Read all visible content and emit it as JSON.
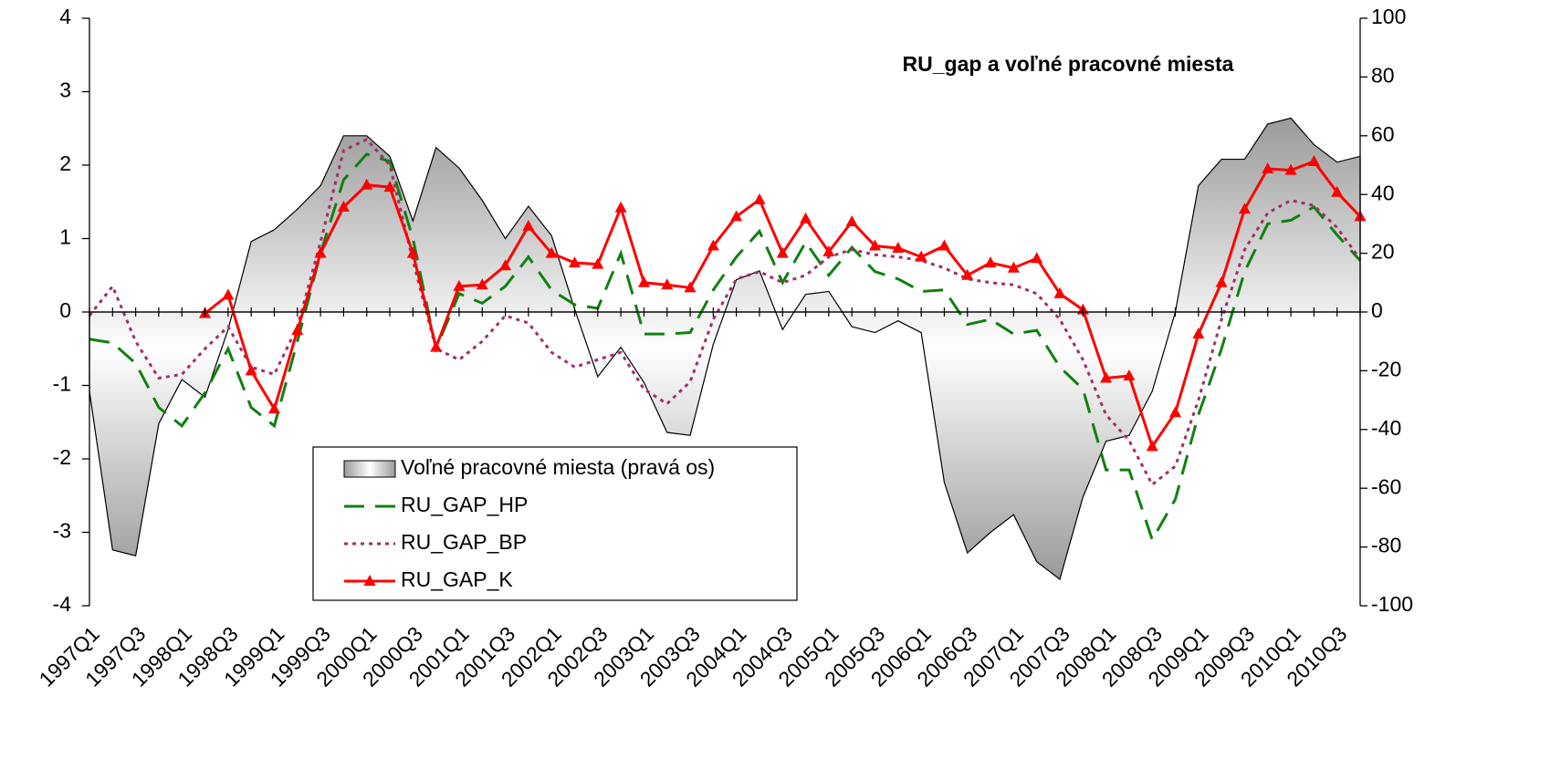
{
  "chart_data": {
    "type": "line",
    "title": "RU_gap a voľné pracovné miesta",
    "categories": [
      "1997Q1",
      null,
      "1997Q3",
      null,
      "1998Q1",
      null,
      "1998Q3",
      null,
      "1999Q1",
      null,
      "1999Q3",
      null,
      "2000Q1",
      null,
      "2000Q3",
      null,
      "2001Q1",
      null,
      "2001Q3",
      null,
      "2002Q1",
      null,
      "2002Q3",
      null,
      "2003Q1",
      null,
      "2003Q3",
      null,
      "2004Q1",
      null,
      "2004Q3",
      null,
      "2005Q1",
      null,
      "2005Q3",
      null,
      "2006Q1",
      null,
      "2006Q3",
      null,
      "2007Q1",
      null,
      "2007Q3",
      null,
      "2008Q1",
      null,
      "2008Q3",
      null,
      "2009Q1",
      null,
      "2009Q3",
      null,
      "2010Q1",
      null,
      "2010Q3",
      null
    ],
    "series": [
      {
        "name": "Voľné pracovné miesta (pravá os)",
        "type": "area",
        "axis": "y2",
        "color": "#a8a8a8",
        "values": [
          -27,
          -81,
          -83,
          -38,
          -23,
          -29,
          -6,
          24,
          28,
          35,
          43,
          60,
          60,
          53,
          31,
          56,
          49,
          38,
          25,
          36,
          26,
          1,
          -22,
          -12,
          -24,
          -41,
          -42,
          -11,
          11,
          14,
          -6,
          6,
          7,
          -5,
          -7,
          -3,
          -7,
          -58,
          -82,
          -75,
          -69,
          -85,
          -91,
          -63,
          -44,
          -42,
          -27,
          0,
          43,
          52,
          52,
          64,
          66,
          57,
          51,
          53
        ]
      },
      {
        "name": "RU_GAP_HP",
        "type": "line",
        "line_style": "dashed",
        "color": "#108010",
        "values": [
          -0.37,
          -0.42,
          -0.7,
          -1.3,
          -1.55,
          -1.1,
          -0.5,
          -1.3,
          -1.55,
          -0.4,
          0.8,
          1.8,
          2.15,
          2.05,
          1.0,
          -0.5,
          0.25,
          0.12,
          0.35,
          0.75,
          0.3,
          0.1,
          0.05,
          0.8,
          -0.3,
          -0.3,
          -0.28,
          0.3,
          0.75,
          1.1,
          0.4,
          0.95,
          0.5,
          0.88,
          0.55,
          0.45,
          0.28,
          0.3,
          -0.17,
          -0.1,
          -0.3,
          -0.25,
          -0.75,
          -1.05,
          -2.15,
          -2.15,
          -3.1,
          -2.55,
          -1.4,
          -0.5,
          0.55,
          1.2,
          1.25,
          1.43,
          1.05,
          0.7
        ]
      },
      {
        "name": "RU_GAP_BP",
        "type": "line",
        "line_style": "dotted",
        "color": "#a0306a",
        "values": [
          -0.05,
          0.35,
          -0.4,
          -0.9,
          -0.85,
          -0.5,
          -0.2,
          -0.75,
          -0.85,
          -0.2,
          0.95,
          2.2,
          2.35,
          2.0,
          0.7,
          -0.5,
          -0.65,
          -0.4,
          -0.05,
          -0.15,
          -0.55,
          -0.75,
          -0.65,
          -0.55,
          -1.05,
          -1.25,
          -0.95,
          -0.1,
          0.45,
          0.55,
          0.4,
          0.5,
          0.75,
          0.85,
          0.78,
          0.75,
          0.7,
          0.6,
          0.45,
          0.4,
          0.37,
          0.25,
          -0.1,
          -0.65,
          -1.4,
          -1.75,
          -2.35,
          -2.1,
          -1.2,
          -0.1,
          0.85,
          1.35,
          1.52,
          1.45,
          1.15,
          0.72
        ]
      },
      {
        "name": "RU_GAP_K",
        "type": "line",
        "line_style": "solid",
        "marker": "triangle",
        "color": "#ff0000",
        "values": [
          null,
          null,
          null,
          null,
          null,
          -0.02,
          0.23,
          -0.8,
          -1.32,
          -0.25,
          0.8,
          1.43,
          1.73,
          1.7,
          0.8,
          -0.48,
          0.35,
          0.37,
          0.63,
          1.17,
          0.8,
          0.67,
          0.65,
          1.42,
          0.4,
          0.37,
          0.33,
          0.9,
          1.3,
          1.53,
          0.8,
          1.27,
          0.82,
          1.23,
          0.9,
          0.87,
          0.75,
          0.9,
          0.5,
          0.67,
          0.6,
          0.73,
          0.25,
          0.03,
          -0.9,
          -0.87,
          -1.83,
          -1.37,
          -0.3,
          0.4,
          1.4,
          1.95,
          1.93,
          2.05,
          1.63,
          1.3
        ]
      }
    ],
    "ylim": [
      -4,
      4
    ],
    "yticks": [
      -4,
      -3,
      -2,
      -1,
      0,
      1,
      2,
      3,
      4
    ],
    "y2lim": [
      -100,
      100
    ],
    "y2ticks": [
      -100,
      -80,
      -60,
      -40,
      -20,
      0,
      20,
      40,
      60,
      80,
      100
    ],
    "legend": "lower-center"
  }
}
